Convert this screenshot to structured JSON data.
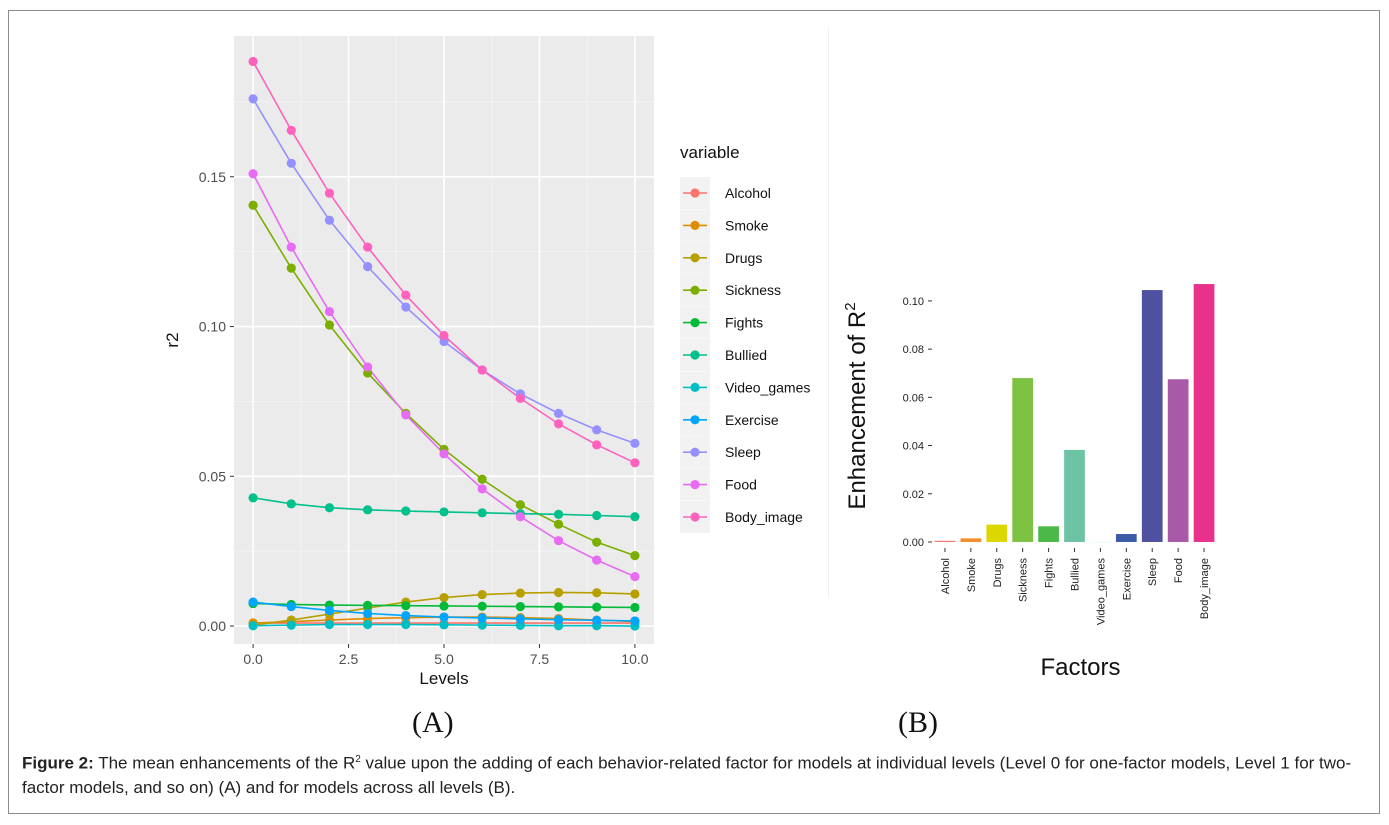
{
  "chart_data": [
    {
      "type": "line",
      "xlabel": "Levels",
      "ylabel": "r2",
      "xlim": [
        -0.5,
        10.5
      ],
      "ylim": [
        -0.006,
        0.197
      ],
      "x_ticks": [
        0,
        2.5,
        5,
        7.5,
        10
      ],
      "x_tick_labels": [
        "0.0",
        "2.5",
        "5.0",
        "7.5",
        "10.0"
      ],
      "y_ticks": [
        0,
        0.05,
        0.1,
        0.15
      ],
      "y_tick_labels": [
        "0.00",
        "0.05",
        "0.10",
        "0.15"
      ],
      "grid": true,
      "legend_title": "variable",
      "legend_position": "right",
      "x": [
        0,
        1,
        2,
        3,
        4,
        5,
        6,
        7,
        8,
        9,
        10
      ],
      "series": [
        {
          "name": "Alcohol",
          "color": "#F8766D",
          "values": [
            0.001,
            0.001,
            0.001,
            0.001,
            0.001,
            0.001,
            0.001,
            0.001,
            0.001,
            0.001,
            0.001
          ]
        },
        {
          "name": "Smoke",
          "color": "#DE8C00",
          "values": [
            0.001,
            0.0015,
            0.002,
            0.0025,
            0.0028,
            0.003,
            0.003,
            0.0028,
            0.0025,
            0.002,
            0.0015
          ]
        },
        {
          "name": "Drugs",
          "color": "#B79F00",
          "values": [
            0.0003,
            0.002,
            0.004,
            0.006,
            0.008,
            0.0095,
            0.0105,
            0.011,
            0.0112,
            0.0111,
            0.0107
          ]
        },
        {
          "name": "Sickness",
          "color": "#7CAE00",
          "values": [
            0.1405,
            0.1195,
            0.1005,
            0.0845,
            0.071,
            0.059,
            0.049,
            0.0405,
            0.034,
            0.028,
            0.0235
          ]
        },
        {
          "name": "Fights",
          "color": "#00BA38",
          "values": [
            0.0075,
            0.0072,
            0.007,
            0.0069,
            0.0068,
            0.0067,
            0.0066,
            0.0065,
            0.0064,
            0.0063,
            0.0062
          ]
        },
        {
          "name": "Bullied",
          "color": "#00C08B",
          "values": [
            0.0428,
            0.0408,
            0.0395,
            0.0388,
            0.0384,
            0.0381,
            0.0378,
            0.0375,
            0.0373,
            0.0369,
            0.0365
          ]
        },
        {
          "name": "Video_games",
          "color": "#00BFC4",
          "values": [
            0.0001,
            0.0003,
            0.0005,
            0.0005,
            0.0005,
            0.0004,
            0.0003,
            0.0002,
            0.0001,
            0.0001,
            0.0
          ]
        },
        {
          "name": "Exercise",
          "color": "#00A5FF",
          "values": [
            0.008,
            0.0065,
            0.0052,
            0.0042,
            0.0035,
            0.003,
            0.0027,
            0.0024,
            0.0021,
            0.0019,
            0.0017
          ]
        },
        {
          "name": "Sleep",
          "color": "#9590FF",
          "values": [
            0.176,
            0.1545,
            0.1355,
            0.12,
            0.1065,
            0.095,
            0.0855,
            0.0775,
            0.071,
            0.0655,
            0.061
          ]
        },
        {
          "name": "Food",
          "color": "#E76BF3",
          "values": [
            0.151,
            0.1265,
            0.105,
            0.0865,
            0.0705,
            0.0575,
            0.0458,
            0.0365,
            0.0285,
            0.022,
            0.0165
          ]
        },
        {
          "name": "Body_image",
          "color": "#FF62BC",
          "values": [
            0.1885,
            0.1655,
            0.1445,
            0.1265,
            0.1105,
            0.097,
            0.0855,
            0.076,
            0.0675,
            0.0605,
            0.0545
          ]
        }
      ]
    },
    {
      "type": "bar",
      "xlabel": "Factors",
      "ylabel": "Enhancement of R",
      "ylabel_superscript": "2",
      "ylim": [
        -0.0025,
        0.112
      ],
      "y_ticks": [
        0,
        0.02,
        0.04,
        0.06,
        0.08,
        0.1
      ],
      "y_tick_labels": [
        "0.00",
        "0.02",
        "0.04",
        "0.06",
        "0.08",
        "0.10"
      ],
      "grid": false,
      "categories": [
        "Alcohol",
        "Smoke",
        "Drugs",
        "Sickness",
        "Fights",
        "Bullied",
        "Video_games",
        "Exercise",
        "Sleep",
        "Food",
        "Body_image"
      ],
      "values": [
        0.0005,
        0.0015,
        0.0072,
        0.068,
        0.0065,
        0.0382,
        0.0,
        0.0033,
        0.1045,
        0.0675,
        0.107
      ],
      "colors": [
        "#F8766D",
        "#F28E2B",
        "#DDD700",
        "#7DC242",
        "#4CB848",
        "#6CC4A4",
        "#58C4DD",
        "#3C5AA8",
        "#5050A0",
        "#A85AA8",
        "#E8318A"
      ]
    }
  ],
  "panels": {
    "a_label": "(A)",
    "b_label": "(B)"
  },
  "caption": {
    "lead": "Figure 2:",
    "text_before_sup": " The mean enhancements of the R",
    "sup": "2",
    "text_after_sup": " value upon the adding of each behavior-related factor for models at individual levels (Level 0 for one-factor models, Level 1 for two-factor models, and so on) (A) and for models across all levels (B)."
  }
}
